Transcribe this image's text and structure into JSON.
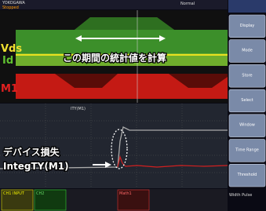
{
  "status_bar": {
    "brand": "YOKOGAWA",
    "state": "Stopped",
    "mode": "Normal"
  },
  "labels": {
    "vds": "Vds",
    "id": "Id",
    "m1": "M1",
    "annotation": "この期間の統計値を計算",
    "loss": "デバイス損失",
    "integ": "IntegTY(M1)",
    "lower_trace": "ITY(M1)"
  },
  "menu": [
    "Display",
    "Mode",
    "Store",
    "Select",
    "Window",
    "Time Range",
    "Threshold"
  ],
  "footer": [
    "CH1 INPUT",
    "CH2",
    "Math1",
    "Width Pulse"
  ]
}
